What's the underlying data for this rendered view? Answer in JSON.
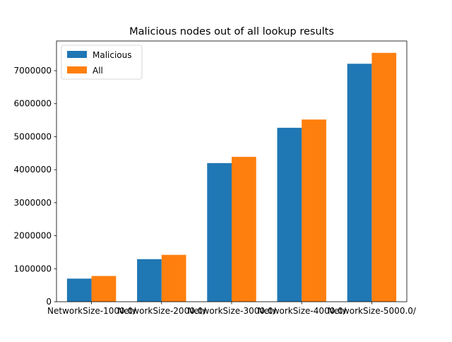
{
  "chart_data": {
    "type": "bar",
    "title": "Malicious nodes out of all lookup results",
    "xlabel": "",
    "ylabel": "",
    "categories": [
      "NetworkSize-1000.0/",
      "NetworkSize-2000.0/",
      "NetworkSize-3000.0/",
      "NetworkSize-4000.0/",
      "NetworkSize-5000.0/"
    ],
    "series": [
      {
        "name": "Malicious",
        "color": "#1f77b4",
        "values": [
          700000,
          1290000,
          4200000,
          5270000,
          7210000
        ]
      },
      {
        "name": "All",
        "color": "#ff7f0e",
        "values": [
          780000,
          1420000,
          4390000,
          5520000,
          7540000
        ]
      }
    ],
    "ylim": [
      0,
      7900000
    ],
    "yticks": [
      0,
      1000000,
      2000000,
      3000000,
      4000000,
      5000000,
      6000000,
      7000000
    ],
    "ytick_labels": [
      "0",
      "1000000",
      "2000000",
      "3000000",
      "4000000",
      "5000000",
      "6000000",
      "7000000"
    ],
    "grid": false,
    "legend": "top-left"
  }
}
